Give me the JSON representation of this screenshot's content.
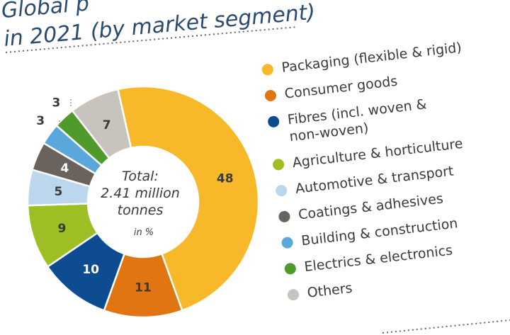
{
  "title": {
    "line1": "Global p",
    "line1_tail": "(by market segment)",
    "line2": "in 2021 (by market segment)"
  },
  "center": {
    "line1": "Total:",
    "line2": "2.41 million",
    "line3": "tonnes",
    "unit": "in %"
  },
  "colors": {
    "title": "#2b4a6f",
    "text": "#3a3a3a",
    "dotted_line": "#666666"
  },
  "chart_data": {
    "type": "pie",
    "title": "",
    "total_label": "Total: 2.41 million tonnes",
    "unit": "in %",
    "categories": [
      "Packaging (flexible & rigid)",
      "Consumer goods",
      "Fibres (incl. woven & non-woven)",
      "Agriculture & horticulture",
      "Automotive & transport",
      "Coatings & adhesives",
      "Building & construction",
      "Electrics & electronics",
      "Others"
    ],
    "values": [
      48,
      11,
      10,
      9,
      5,
      4,
      3,
      3,
      7
    ],
    "value_labels": [
      "48",
      "11",
      "10",
      "9",
      "5",
      "4",
      "3",
      "3",
      "7"
    ],
    "colors": [
      "#F7B82A",
      "#E07511",
      "#0E4C92",
      "#9DBF23",
      "#BCD6EE",
      "#6A625D",
      "#5AA7DC",
      "#4E9A2B",
      "#C9C3BE"
    ],
    "label_colors": [
      "#3a3a3a",
      "#3a3a3a",
      "#ffffff",
      "#3a3a3a",
      "#3a3a3a",
      "#ffffff",
      "#3a3a3a",
      "#3a3a3a",
      "#3a3a3a"
    ],
    "legend": [
      [
        "Packaging (flexible & rigid)"
      ],
      [
        "Consumer goods"
      ],
      [
        "Fibres (incl. woven &",
        "non-woven)"
      ],
      [
        "Agriculture & horticulture"
      ],
      [
        "Automotive & transport"
      ],
      [
        "Coatings & adhesives"
      ],
      [
        "Building & construction"
      ],
      [
        "Electrics & electronics"
      ],
      [
        "Others"
      ]
    ],
    "legend_placement": "right"
  }
}
